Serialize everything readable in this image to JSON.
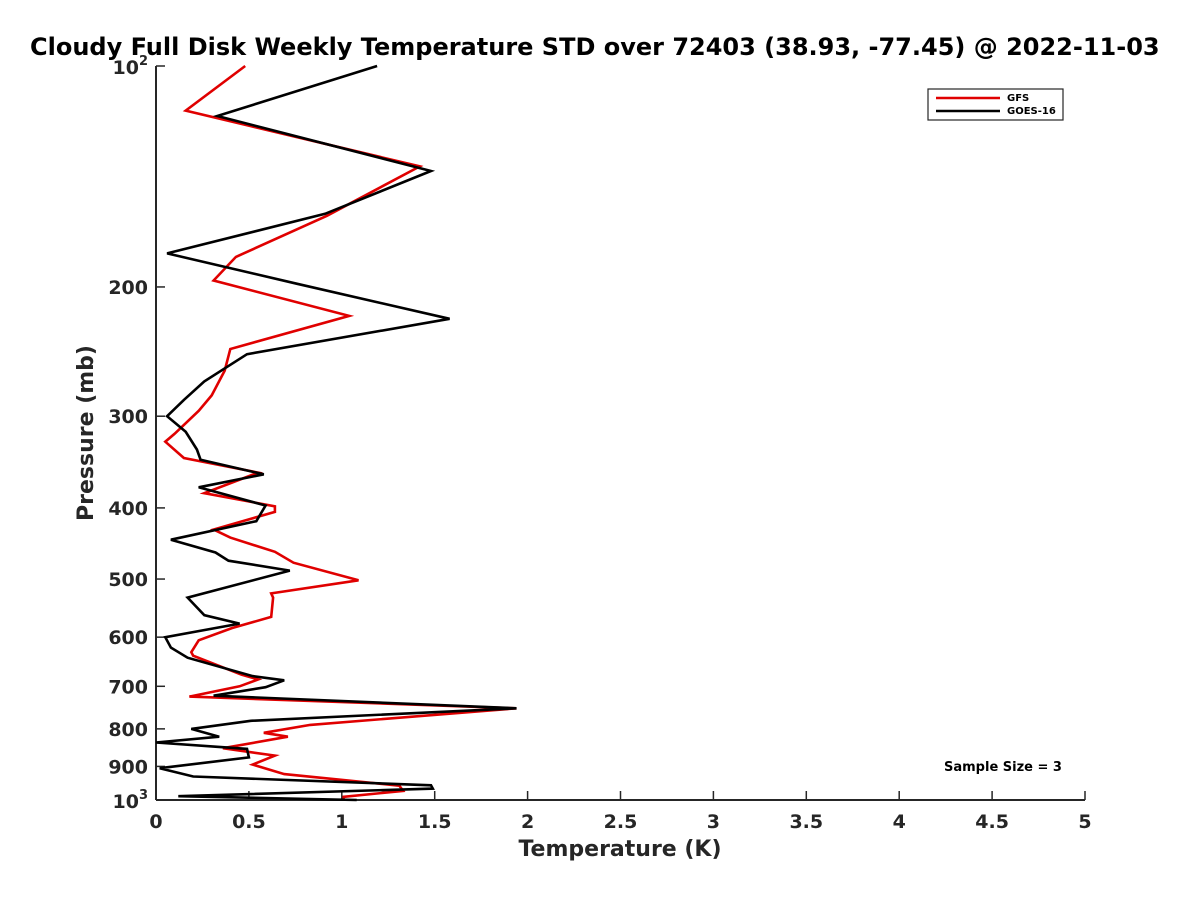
{
  "chart_data": {
    "type": "line",
    "title": "Cloudy Full Disk Weekly Temperature STD over 72403 (38.93, -77.45) @ 2022-11-03",
    "xlabel": "Temperature (K)",
    "ylabel": "Pressure (mb)",
    "xlim": [
      0,
      5
    ],
    "ylim": [
      100,
      1000
    ],
    "y_scale": "log",
    "y_reversed": true,
    "x_ticks": [
      "0",
      "0.5",
      "1",
      "1.5",
      "2",
      "2.5",
      "3",
      "3.5",
      "4",
      "4.5",
      "5"
    ],
    "y_ticks": [
      {
        "value": 100,
        "base": "10",
        "exp": "2"
      },
      {
        "value": 200,
        "label": "200"
      },
      {
        "value": 300,
        "label": "300"
      },
      {
        "value": 400,
        "label": "400"
      },
      {
        "value": 500,
        "label": "500"
      },
      {
        "value": 600,
        "label": "600"
      },
      {
        "value": 700,
        "label": "700"
      },
      {
        "value": 800,
        "label": "800"
      },
      {
        "value": 900,
        "label": "900"
      },
      {
        "value": 1000,
        "base": "10",
        "exp": "3"
      }
    ],
    "grid": false,
    "legend_position": "top-right",
    "annotation": "Sample Size = 3",
    "series": [
      {
        "name": "GFS",
        "color": "#e00000",
        "points": [
          [
            0.48,
            100
          ],
          [
            0.16,
            115
          ],
          [
            1.42,
            137
          ],
          [
            0.92,
            160
          ],
          [
            0.43,
            182
          ],
          [
            0.31,
            196
          ],
          [
            1.04,
            219
          ],
          [
            0.4,
            243
          ],
          [
            0.37,
            260
          ],
          [
            0.3,
            281
          ],
          [
            0.23,
            295
          ],
          [
            0.1,
            317
          ],
          [
            0.05,
            325
          ],
          [
            0.15,
            342
          ],
          [
            0.55,
            358
          ],
          [
            0.26,
            382
          ],
          [
            0.64,
            398
          ],
          [
            0.64,
            405
          ],
          [
            0.31,
            428
          ],
          [
            0.4,
            439
          ],
          [
            0.64,
            459
          ],
          [
            0.74,
            475
          ],
          [
            1.09,
            502
          ],
          [
            0.62,
            523
          ],
          [
            0.63,
            530
          ],
          [
            0.62,
            563
          ],
          [
            0.41,
            583
          ],
          [
            0.23,
            606
          ],
          [
            0.19,
            629
          ],
          [
            0.2,
            636
          ],
          [
            0.46,
            675
          ],
          [
            0.55,
            685
          ],
          [
            0.45,
            700
          ],
          [
            0.18,
            723
          ],
          [
            1.94,
            750
          ],
          [
            0.83,
            790
          ],
          [
            0.58,
            810
          ],
          [
            0.71,
            820
          ],
          [
            0.36,
            850
          ],
          [
            0.64,
            870
          ],
          [
            0.52,
            895
          ],
          [
            0.69,
            922
          ],
          [
            1.31,
            956
          ],
          [
            1.33,
            972
          ],
          [
            1.01,
            990
          ],
          [
            1.01,
            1000
          ]
        ]
      },
      {
        "name": "GOES-16",
        "color": "#000000",
        "points": [
          [
            1.19,
            100
          ],
          [
            0.33,
            117
          ],
          [
            1.48,
            139
          ],
          [
            0.91,
            159
          ],
          [
            0.06,
            180
          ],
          [
            0.76,
            198
          ],
          [
            1.58,
            221
          ],
          [
            0.49,
            247
          ],
          [
            0.26,
            269
          ],
          [
            0.15,
            285
          ],
          [
            0.06,
            300
          ],
          [
            0.16,
            315
          ],
          [
            0.22,
            333
          ],
          [
            0.24,
            344
          ],
          [
            0.58,
            360
          ],
          [
            0.23,
            375
          ],
          [
            0.59,
            397
          ],
          [
            0.54,
            417
          ],
          [
            0.08,
            442
          ],
          [
            0.32,
            460
          ],
          [
            0.39,
            472
          ],
          [
            0.72,
            487
          ],
          [
            0.17,
            530
          ],
          [
            0.26,
            560
          ],
          [
            0.45,
            575
          ],
          [
            0.05,
            600
          ],
          [
            0.08,
            620
          ],
          [
            0.17,
            640
          ],
          [
            0.52,
            678
          ],
          [
            0.69,
            687
          ],
          [
            0.59,
            702
          ],
          [
            0.31,
            721
          ],
          [
            1.94,
            750
          ],
          [
            0.51,
            780
          ],
          [
            0.19,
            800
          ],
          [
            0.34,
            820
          ],
          [
            0.0,
            835
          ],
          [
            0.49,
            852
          ],
          [
            0.5,
            875
          ],
          [
            0.02,
            905
          ],
          [
            0.2,
            929
          ],
          [
            1.48,
            955
          ],
          [
            1.49,
            965
          ],
          [
            0.12,
            988
          ],
          [
            1.08,
            1000
          ]
        ]
      }
    ]
  }
}
